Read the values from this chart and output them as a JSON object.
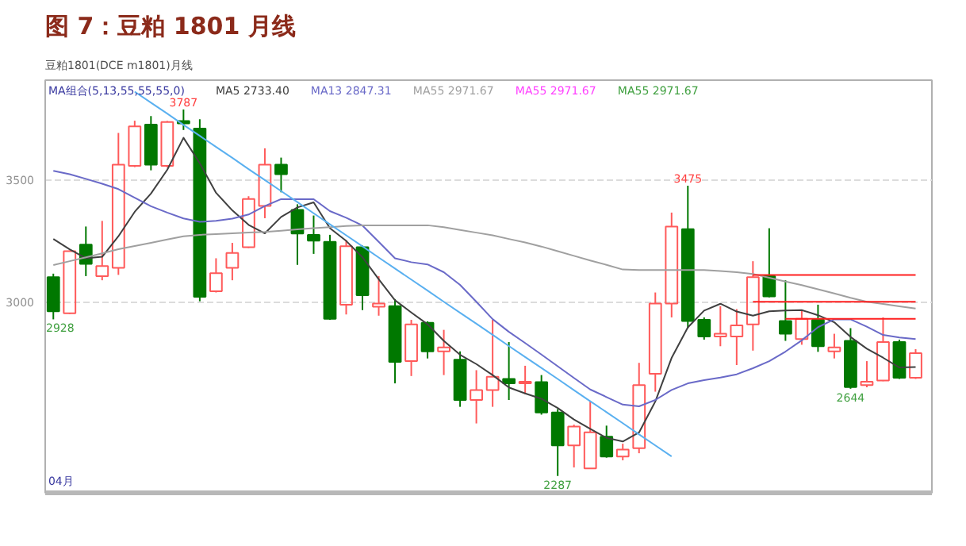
{
  "chart_data": {
    "type": "candlestick",
    "title": "图 7：豆粕 1801 月线",
    "categories": [
      null,
      null,
      null,
      null,
      null,
      null,
      null,
      null,
      null,
      null,
      null,
      null,
      null,
      null,
      null,
      null,
      null,
      null,
      null,
      null,
      null,
      null,
      null,
      null,
      null,
      null,
      null,
      null,
      null,
      null,
      null,
      null,
      null,
      null,
      null,
      null,
      null,
      null,
      null,
      null,
      null,
      null,
      null,
      null,
      null,
      null,
      null,
      null,
      null,
      null,
      null,
      null,
      null,
      null
    ],
    "ohlc": [
      [
        3101,
        3115,
        2928,
        2961
      ],
      [
        2953,
        3210,
        2950,
        3207
      ],
      [
        3234,
        3308,
        3105,
        3155
      ],
      [
        3105,
        3331,
        3088,
        3146
      ],
      [
        3139,
        3691,
        3110,
        3561
      ],
      [
        3556,
        3741,
        3551,
        3718
      ],
      [
        3725,
        3760,
        3538,
        3561
      ],
      [
        3556,
        3740,
        3550,
        3736
      ],
      [
        3740,
        3787,
        3703,
        3730
      ],
      [
        3709,
        3747,
        3002,
        3020
      ],
      [
        3043,
        3178,
        3038,
        3117
      ],
      [
        3139,
        3241,
        3088,
        3200
      ],
      [
        3223,
        3432,
        3220,
        3421
      ],
      [
        3392,
        3628,
        3342,
        3561
      ],
      [
        3561,
        3590,
        3448,
        3522
      ],
      [
        3376,
        3399,
        3151,
        3279
      ],
      [
        3274,
        3353,
        3196,
        3250
      ],
      [
        3245,
        3274,
        2926,
        2930
      ],
      [
        2988,
        3252,
        2948,
        3227
      ],
      [
        3223,
        3230,
        2966,
        3027
      ],
      [
        2980,
        3105,
        2943,
        2993
      ],
      [
        2982,
        3011,
        2666,
        2754
      ],
      [
        2757,
        2926,
        2696,
        2907
      ],
      [
        2914,
        2920,
        2768,
        2797
      ],
      [
        2797,
        2885,
        2700,
        2813
      ],
      [
        2763,
        2797,
        2570,
        2598
      ],
      [
        2598,
        2720,
        2502,
        2639
      ],
      [
        2639,
        2926,
        2570,
        2693
      ],
      [
        2684,
        2835,
        2598,
        2666
      ],
      [
        2666,
        2738,
        2622,
        2673
      ],
      [
        2671,
        2700,
        2538,
        2547
      ],
      [
        2547,
        2561,
        2287,
        2412
      ],
      [
        2412,
        2497,
        2322,
        2489
      ],
      [
        2318,
        2595,
        2318,
        2466
      ],
      [
        2448,
        2493,
        2362,
        2367
      ],
      [
        2367,
        2419,
        2351,
        2395
      ],
      [
        2401,
        2750,
        2380,
        2659
      ],
      [
        2705,
        3038,
        2632,
        2993
      ],
      [
        2993,
        3365,
        2936,
        3308
      ],
      [
        3297,
        3475,
        2892,
        2921
      ],
      [
        2926,
        2936,
        2845,
        2858
      ],
      [
        2858,
        2982,
        2818,
        2869
      ],
      [
        2858,
        2970,
        2741,
        2903
      ],
      [
        2907,
        3166,
        2800,
        3101
      ],
      [
        3105,
        3301,
        3018,
        3022
      ],
      [
        2921,
        3088,
        2840,
        2869
      ],
      [
        2847,
        2966,
        2824,
        2930
      ],
      [
        2926,
        2988,
        2795,
        2818
      ],
      [
        2797,
        2869,
        2768,
        2813
      ],
      [
        2840,
        2892,
        2644,
        2651
      ],
      [
        2659,
        2757,
        2650,
        2673
      ],
      [
        2678,
        2936,
        2675,
        2835
      ],
      [
        2835,
        2845,
        2684,
        2689
      ],
      [
        2689,
        2806,
        2684,
        2790
      ]
    ],
    "colors": [
      "#007800",
      "#ff5a5a",
      "#007800",
      "#ff5a5a",
      "#ff5a5a",
      "#ff5a5a",
      "#007800",
      "#ff5a5a",
      "#007800",
      "#007800",
      "#ff5a5a",
      "#ff5a5a",
      "#ff5a5a",
      "#ff5a5a",
      "#007800",
      "#007800",
      "#007800",
      "#007800",
      "#ff5a5a",
      "#007800",
      "#ff5a5a",
      "#007800",
      "#ff5a5a",
      "#007800",
      "#ff5a5a",
      "#007800",
      "#ff5a5a",
      "#ff5a5a",
      "#007800",
      "#ff5a5a",
      "#007800",
      "#007800",
      "#ff5a5a",
      "#ff5a5a",
      "#007800",
      "#ff5a5a",
      "#ff5a5a",
      "#ff5a5a",
      "#ff5a5a",
      "#007800",
      "#007800",
      "#ff5a5a",
      "#ff5a5a",
      "#ff5a5a",
      "#007800",
      "#007800",
      "#ff5a5a",
      "#007800",
      "#ff5a5a",
      "#007800",
      "#ff5a5a",
      "#ff5a5a",
      "#007800",
      "#ff5a5a"
    ],
    "series": [
      {
        "type": "line",
        "name": "MA5 2733.40",
        "color": "#404040",
        "values": [
          3257,
          3215,
          3178,
          3184,
          3268,
          3368,
          3443,
          3540,
          3671,
          3567,
          3446,
          3374,
          3315,
          3280,
          3347,
          3386,
          3407,
          3301,
          3249,
          3182,
          3092,
          3006,
          2956,
          2908,
          2840,
          2783,
          2745,
          2700,
          2649,
          2625,
          2603,
          2565,
          2518,
          2480,
          2443,
          2428,
          2465,
          2592,
          2770,
          2895,
          2964,
          2992,
          2960,
          2943,
          2961,
          2964,
          2966,
          2945,
          2916,
          2856,
          2808,
          2771,
          2731,
          2733
        ]
      },
      {
        "type": "line",
        "name": "MA13 2847.31",
        "color": "#6a6ac8",
        "values": [
          3536,
          3522,
          3503,
          3483,
          3461,
          3426,
          3391,
          3365,
          3341,
          3327,
          3331,
          3340,
          3357,
          3392,
          3420,
          3420,
          3420,
          3371,
          3344,
          3312,
          3245,
          3178,
          3162,
          3153,
          3121,
          3069,
          3000,
          2929,
          2877,
          2831,
          2784,
          2736,
          2688,
          2641,
          2610,
          2579,
          2572,
          2598,
          2639,
          2666,
          2679,
          2690,
          2703,
          2728,
          2757,
          2796,
          2842,
          2896,
          2928,
          2928,
          2898,
          2864,
          2854,
          2847
        ]
      },
      {
        "type": "line",
        "name": "MA55 2971.67",
        "color": "#a0a0a0",
        "values": [
          3150,
          3166,
          3182,
          3198,
          3215,
          3228,
          3241,
          3255,
          3268,
          3274,
          3277,
          3280,
          3283,
          3286,
          3291,
          3296,
          3301,
          3305,
          3310,
          3313,
          3313,
          3313,
          3313,
          3313,
          3305,
          3294,
          3283,
          3272,
          3257,
          3243,
          3226,
          3207,
          3188,
          3169,
          3151,
          3132,
          3130,
          3130,
          3130,
          3130,
          3130,
          3126,
          3121,
          3114,
          3098,
          3083,
          3068,
          3051,
          3034,
          3016,
          3000,
          2991,
          2981,
          2972
        ]
      },
      {
        "type": "line",
        "color": "#5ab0f0",
        "values": [
          null,
          null,
          null,
          null,
          null,
          3860,
          3815,
          3770,
          3724,
          3679,
          3634,
          3589,
          3543,
          3498,
          3453,
          3408,
          3362,
          3317,
          3272,
          3227,
          3181,
          3136,
          3091,
          3046,
          3000,
          2955,
          2910,
          2865,
          2819,
          2774,
          2729,
          2684,
          2638,
          2593,
          2548,
          2503,
          2457,
          2412,
          2367,
          null,
          null,
          null,
          null,
          null,
          null,
          null,
          null,
          null,
          null,
          null,
          null,
          null,
          null,
          null
        ]
      },
      {
        "type": "line",
        "color": "#ff2020",
        "values": [
          null,
          null,
          null,
          null,
          null,
          null,
          null,
          null,
          null,
          null,
          null,
          null,
          null,
          null,
          null,
          null,
          null,
          null,
          null,
          null,
          null,
          null,
          null,
          null,
          null,
          null,
          null,
          null,
          null,
          null,
          null,
          null,
          null,
          null,
          null,
          null,
          null,
          null,
          null,
          null,
          null,
          null,
          null,
          3110,
          3110,
          3110,
          3110,
          3110,
          3110,
          3110,
          3110,
          3110,
          3110,
          3110
        ]
      },
      {
        "type": "line",
        "color": "#ff2020",
        "values": [
          null,
          null,
          null,
          null,
          null,
          null,
          null,
          null,
          null,
          null,
          null,
          null,
          null,
          null,
          null,
          null,
          null,
          null,
          null,
          null,
          null,
          null,
          null,
          null,
          null,
          null,
          null,
          null,
          null,
          null,
          null,
          null,
          null,
          null,
          null,
          null,
          null,
          null,
          null,
          null,
          null,
          null,
          null,
          3000,
          3000,
          3000,
          3000,
          3000,
          3000,
          3000,
          3000,
          3000,
          3000,
          3000
        ]
      },
      {
        "type": "line",
        "color": "#ff2020",
        "values": [
          null,
          null,
          null,
          null,
          null,
          null,
          null,
          null,
          null,
          null,
          null,
          null,
          null,
          null,
          null,
          null,
          null,
          null,
          null,
          null,
          null,
          null,
          null,
          null,
          null,
          null,
          null,
          null,
          null,
          null,
          null,
          null,
          null,
          null,
          null,
          null,
          null,
          null,
          null,
          null,
          null,
          null,
          null,
          null,
          null,
          2930,
          2930,
          2930,
          2930,
          2930,
          2930,
          2930,
          2930,
          2930
        ]
      }
    ],
    "annotations": [
      "豆粕1801(DCE m1801)月线",
      "MA组合(5,13,55,55,55,0)",
      "MA55 2971.67",
      "MA55 2971.67",
      {
        "text": "3787",
        "y": 3787
      },
      {
        "text": "3475",
        "y": 3475
      },
      {
        "text": "2287",
        "y": 2287
      },
      {
        "text": "2644",
        "y": 2644
      },
      {
        "text": "2928",
        "y": 2928
      },
      "04月"
    ],
    "ylim": [
      2218,
      3907
    ],
    "yticks": [
      3000,
      3500
    ],
    "grid": "y",
    "legend": "top left",
    "tick_labels": "y"
  }
}
